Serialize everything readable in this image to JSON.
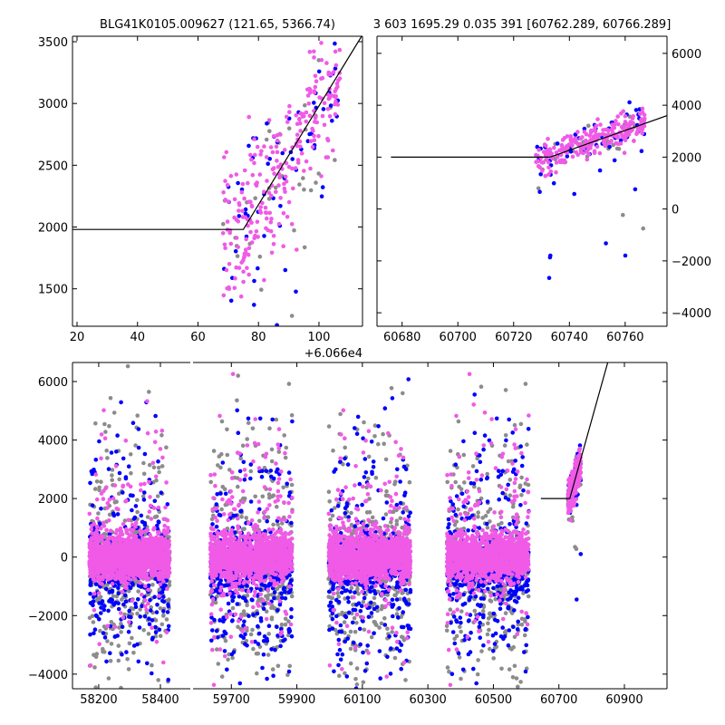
{
  "chart_data": {
    "type": "scatter",
    "title_left": "BLG41K0105.009627 (121.65, 5366.74)",
    "title_right": "3 603 1695.29 0.035 391 [60762.289, 60766.289]",
    "colors": {
      "gray": "#8c8c8c",
      "blue": "#0000ff",
      "magenta": "#f05ae6",
      "line": "#000000"
    },
    "panels": [
      {
        "id": "zoom-left",
        "offset_label": "+6.066e4",
        "xlim": [
          18.5,
          114.4
        ],
        "ylim": [
          1197,
          3544
        ],
        "xticks": [
          20,
          40,
          60,
          80,
          100
        ],
        "yticks": [
          1500,
          2000,
          2500,
          3000,
          3500
        ],
        "yaxis_side": "left",
        "model_line": [
          [
            18.5,
            1980
          ],
          [
            75,
            1980
          ],
          [
            114.4,
            3556
          ]
        ],
        "points": {
          "x_range": [
            68,
            107
          ],
          "trend": {
            "x0": 75,
            "y0": 1980,
            "slope": 40
          },
          "scatter": 260,
          "count": {
            "gray": 40,
            "blue": 70,
            "magenta": 260
          }
        }
      },
      {
        "id": "zoom-right",
        "xlim": [
          60671,
          60775
        ],
        "ylim": [
          -4520,
          6660
        ],
        "xticks": [
          60680,
          60700,
          60720,
          60740,
          60760
        ],
        "yticks": [
          -4000,
          -2000,
          0,
          2000,
          4000,
          6000
        ],
        "yaxis_side": "right",
        "model_line": [
          [
            60676,
            2000
          ],
          [
            60733,
            2000
          ],
          [
            60775,
            3600
          ]
        ],
        "points": {
          "x_range": [
            60728,
            60767
          ],
          "trend": {
            "x0": 60733,
            "y0": 2000,
            "slope": 38
          },
          "scatter": 300,
          "count": {
            "gray": 40,
            "blue": 60,
            "magenta": 240
          }
        }
      },
      {
        "id": "full-light-curve",
        "broken_x": true,
        "segments": [
          {
            "xlim": [
              58115,
              58497
            ],
            "xticks": [
              58200,
              58400
            ]
          },
          {
            "xlim": [
              59583,
              61030
            ],
            "xticks": [
              59700,
              59900,
              60100,
              60300,
              60500,
              60700,
              60900
            ]
          }
        ],
        "ylim": [
          -4500,
          6650
        ],
        "yticks": [
          -4000,
          -2000,
          0,
          2000,
          4000,
          6000
        ],
        "yaxis_side": "left",
        "model_line": [
          [
            60645,
            2000
          ],
          [
            60733,
            2000
          ],
          [
            60849,
            6650
          ]
        ],
        "seasons": [
          {
            "x_range": [
              58170,
              58430
            ],
            "count": {
              "gray": 500,
              "blue": 500,
              "magenta": 1400
            }
          },
          {
            "x_range": [
              59636,
              59886
            ],
            "count": {
              "gray": 500,
              "blue": 550,
              "magenta": 1400
            }
          },
          {
            "x_range": [
              59997,
              60247
            ],
            "count": {
              "gray": 500,
              "blue": 550,
              "magenta": 1400
            }
          },
          {
            "x_range": [
              60358,
              60608
            ],
            "count": {
              "gray": 500,
              "blue": 550,
              "magenta": 1400
            }
          }
        ],
        "rising_season": {
          "x_range": [
            60728,
            60767
          ],
          "trend": {
            "x0": 60733,
            "y0": 2000,
            "slope": 38
          },
          "scatter": 300,
          "count": {
            "gray": 40,
            "blue": 50,
            "magenta": 240
          }
        }
      }
    ]
  }
}
